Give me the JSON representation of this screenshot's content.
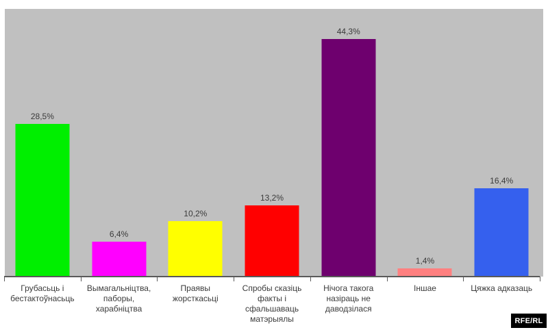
{
  "chart_data": {
    "type": "bar",
    "title": "",
    "xlabel": "",
    "ylabel": "",
    "categories": [
      "Грубасьць і бестактоўнасьць",
      "Вымагальніцтва, паборы, харабніцтва",
      "Праявы жорсткасьці",
      "Спробы сказіць факты і сфальшаваць матэрыялы",
      "Нічога такога назіраць не даводзілася",
      "Іншае",
      "Цяжка адказаць"
    ],
    "values": [
      28.5,
      6.4,
      10.2,
      13.2,
      44.3,
      1.4,
      16.4
    ],
    "value_labels": [
      "28,5%",
      "6,4%",
      "10,2%",
      "13,2%",
      "44,3%",
      "1,4%",
      "16,4%"
    ],
    "bar_colors": [
      "#00ef00",
      "#ff00ff",
      "#ffff00",
      "#ff0000",
      "#6e006e",
      "#ff8080",
      "#3560ee"
    ],
    "ylim": [
      0,
      50
    ],
    "grid": false,
    "legend": "none",
    "plot_background": "#c0c0c0",
    "axis_color": "#595959",
    "label_color": "#3a3a3a"
  },
  "branding": {
    "logo_text": "RFE/RL",
    "logo_background": "#000000",
    "logo_foreground": "#ffffff"
  }
}
